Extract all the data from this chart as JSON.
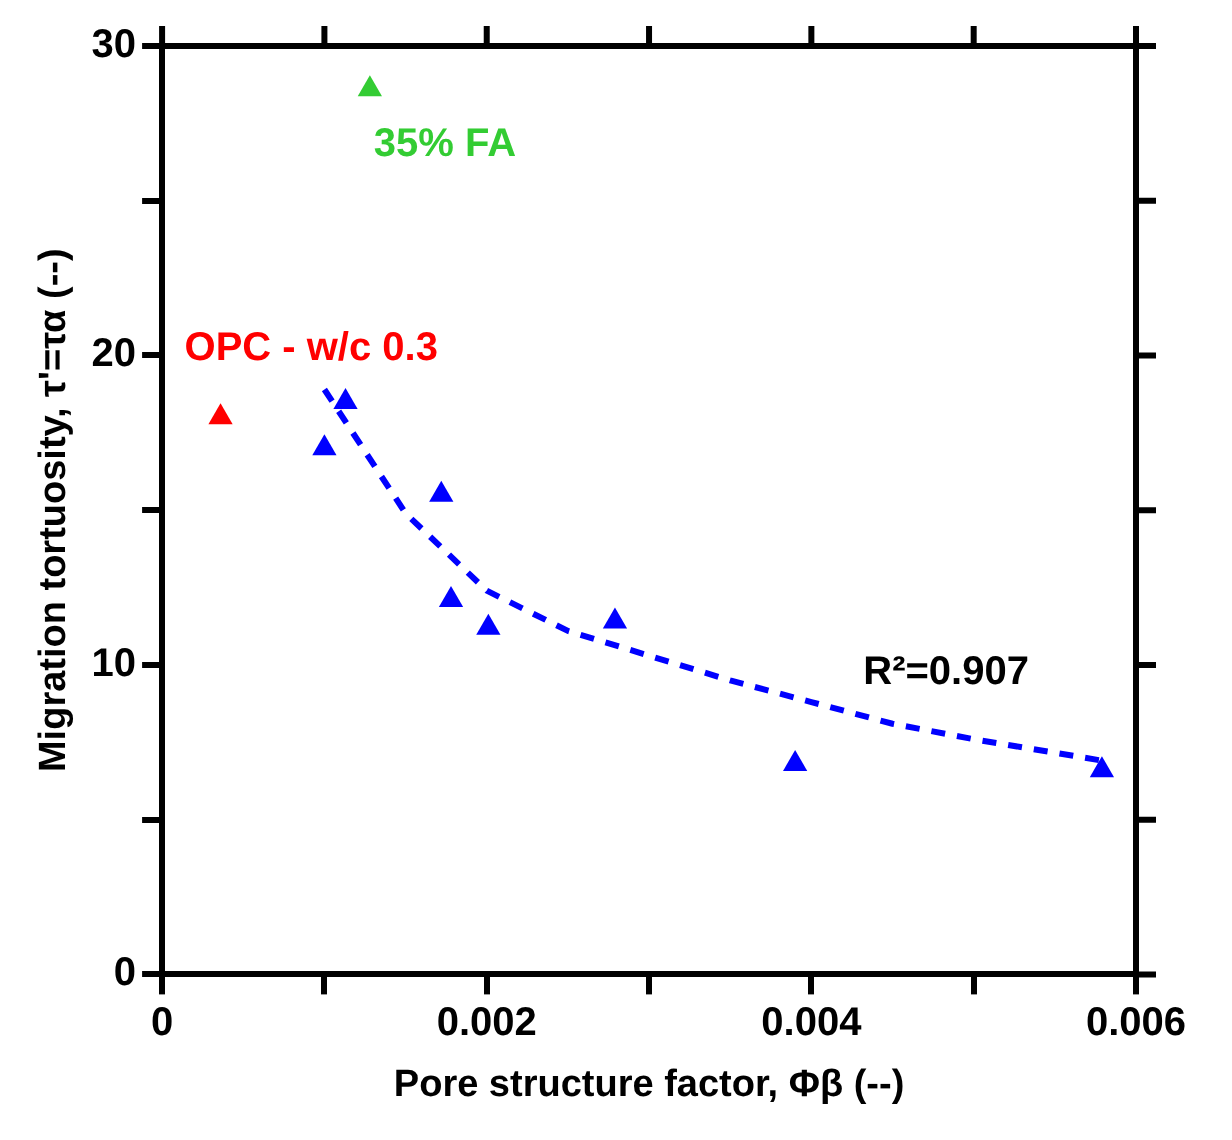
{
  "chart_data": {
    "type": "scatter",
    "xlabel": "Pore structure factor, Φβ (--)",
    "ylabel": "Migration tortuosity, τ'=τα (--)",
    "xlim": [
      0,
      0.006
    ],
    "xticks": [
      0,
      {
        "value": 0.001,
        "label": null
      },
      0.002,
      {
        "value": 0.003,
        "label": null
      },
      0.004,
      {
        "value": 0.005,
        "label": null
      },
      0.006
    ],
    "ylim": [
      0,
      30
    ],
    "yticks": [
      0,
      {
        "value": 5,
        "label": null
      },
      10,
      {
        "value": 15,
        "label": null
      },
      20,
      {
        "value": 25,
        "label": null
      },
      30
    ],
    "grid": false,
    "legend": false,
    "marker": "triangle",
    "series": [
      {
        "name": "OPC - w/c 0.3",
        "color": "#ff0000",
        "x": [
          0.00036
        ],
        "values": [
          18.0
        ]
      },
      {
        "name": "35% FA",
        "color": "#33cc33",
        "x": [
          0.00128
        ],
        "values": [
          28.6
        ]
      },
      {
        "color": "#0000ff",
        "x": [
          0.001,
          0.00113,
          0.00172,
          0.00178,
          0.00201,
          0.00279,
          0.0039,
          0.00579
        ],
        "values": [
          17.0,
          18.5,
          15.5,
          12.1,
          11.2,
          11.4,
          6.8,
          6.6
        ]
      },
      {
        "type": "line",
        "line_style": "dashed",
        "marker": "none",
        "color": "#0000ff",
        "x": [
          0.001,
          0.0015,
          0.002,
          0.0025,
          0.003,
          0.0035,
          0.004,
          0.0045,
          0.005,
          0.0058
        ],
        "values": [
          18.9,
          14.9,
          12.4,
          11.1,
          10.3,
          9.5,
          8.8,
          8.1,
          7.6,
          6.9
        ]
      }
    ],
    "annotations": [
      "R²=0.907"
    ]
  }
}
